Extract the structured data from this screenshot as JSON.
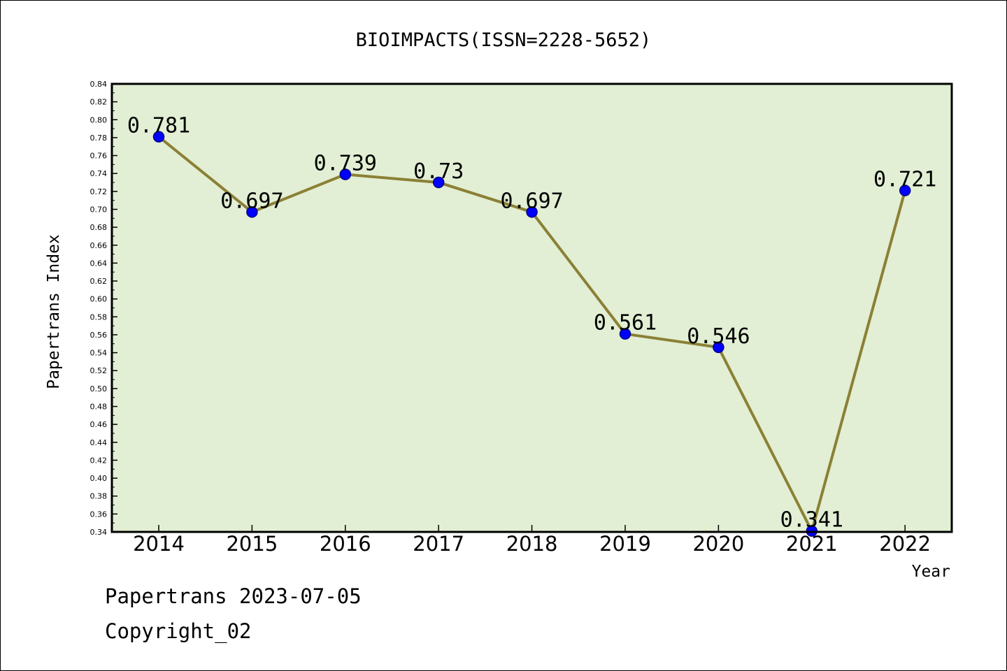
{
  "chart_data": {
    "type": "line",
    "title": "BIOIMPACTS(ISSN=2228-5652)",
    "xlabel": "Year",
    "ylabel": "Papertrans Index",
    "categories": [
      "2014",
      "2015",
      "2016",
      "2017",
      "2018",
      "2019",
      "2020",
      "2021",
      "2022"
    ],
    "series": [
      {
        "values": [
          0.781,
          0.697,
          0.739,
          0.73,
          0.697,
          0.561,
          0.546,
          0.341,
          0.721
        ],
        "labels": [
          "0.781",
          "0.697",
          "0.739",
          "0.73",
          "0.697",
          "0.561",
          "0.546",
          "0.341",
          "0.721"
        ],
        "line_color": "#8b8035",
        "marker_color": "#0000ff"
      }
    ],
    "ylim": [
      0.34,
      0.84
    ],
    "yticks": [
      "0.34",
      "0.36",
      "0.38",
      "0.40",
      "0.42",
      "0.44",
      "0.46",
      "0.48",
      "0.50",
      "0.52",
      "0.54",
      "0.56",
      "0.58",
      "0.60",
      "0.62",
      "0.64",
      "0.66",
      "0.68",
      "0.70",
      "0.72",
      "0.74",
      "0.76",
      "0.78",
      "0.80",
      "0.82",
      "0.84"
    ],
    "plot_background": "#e2efd4",
    "grid": false,
    "legend": "none"
  },
  "footer": {
    "line1": "Papertrans 2023-07-05",
    "line2": "Copyright_02"
  }
}
